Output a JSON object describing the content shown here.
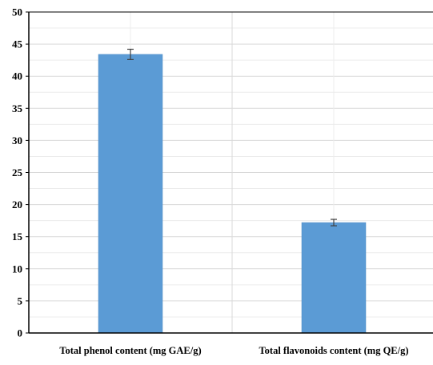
{
  "chart_data": {
    "type": "bar",
    "title": "",
    "xlabel": "",
    "ylabel": "",
    "categories": [
      "Total phenol content (mg GAE/g)",
      "Total flavonoids content (mg QE/g)"
    ],
    "values": [
      43.4,
      17.2
    ],
    "errors": [
      0.8,
      0.5
    ],
    "ylim": [
      0,
      50
    ],
    "yticks": [
      "0",
      "5",
      "10",
      "15",
      "20",
      "25",
      "30",
      "35",
      "40",
      "45",
      "50"
    ],
    "grid": true,
    "legend": "none",
    "colors": {
      "bar": "#5b9bd5",
      "bar_edge": "#4f8cc5",
      "error_bar": "#404040",
      "grid_major": "#d9d9d9",
      "grid_minor": "#ececec",
      "axis": "#000000"
    }
  }
}
